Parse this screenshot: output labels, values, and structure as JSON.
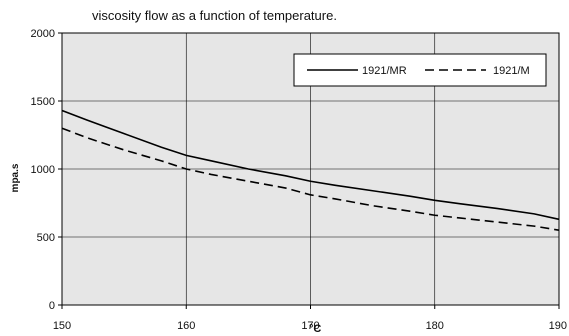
{
  "chart_data": {
    "type": "line",
    "title": "viscosity flow as a function of temperature.",
    "xlabel": "°C",
    "ylabel": "mpa.s",
    "xlim": [
      150,
      190
    ],
    "ylim": [
      0,
      2000
    ],
    "x_ticks": [
      "150",
      "160",
      "170",
      "180",
      "190"
    ],
    "y_ticks": [
      "0",
      "500",
      "1000",
      "1500",
      "2000"
    ],
    "grid": true,
    "legend_position": "top-right",
    "series": [
      {
        "name": "1921/MR",
        "line_style": "solid",
        "x": [
          150,
          152,
          155,
          158,
          160,
          162,
          165,
          168,
          170,
          172,
          175,
          178,
          180,
          182,
          185,
          188,
          190
        ],
        "y": [
          1430,
          1360,
          1260,
          1160,
          1100,
          1060,
          1000,
          950,
          910,
          880,
          840,
          800,
          770,
          745,
          710,
          670,
          630
        ]
      },
      {
        "name": "1921/M",
        "line_style": "dashed",
        "x": [
          150,
          152,
          155,
          158,
          160,
          162,
          165,
          168,
          170,
          172,
          175,
          178,
          180,
          182,
          185,
          188,
          190
        ],
        "y": [
          1300,
          1230,
          1140,
          1060,
          1000,
          960,
          910,
          860,
          810,
          780,
          730,
          690,
          660,
          640,
          610,
          580,
          550
        ]
      }
    ]
  },
  "colors": {
    "plot_background": "#e6e6e6",
    "grid": "#000000",
    "line": "#000000"
  }
}
